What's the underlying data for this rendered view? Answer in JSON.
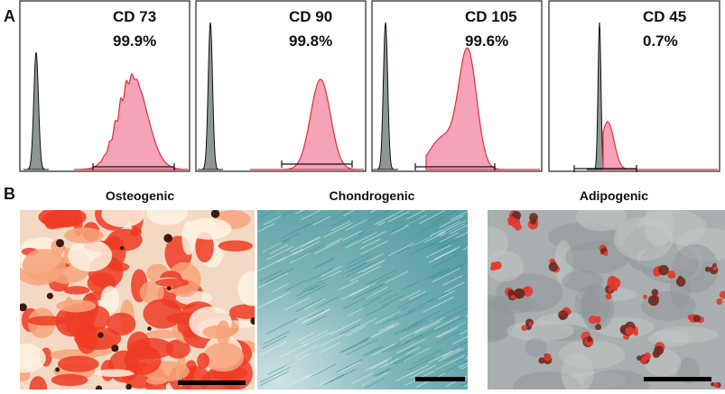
{
  "panel_a": {
    "label": "A",
    "histograms": [
      {
        "marker": "CD 73",
        "percent": "99.9%"
      },
      {
        "marker": "CD 90",
        "percent": "99.8%"
      },
      {
        "marker": "CD 105",
        "percent": "99.6%"
      },
      {
        "marker": "CD 45",
        "percent": "0.7%"
      }
    ]
  },
  "panel_b": {
    "label": "B",
    "images": [
      {
        "title": "Osteogenic"
      },
      {
        "title": "Chondrogenic"
      },
      {
        "title": "Adipogenic"
      }
    ]
  }
}
